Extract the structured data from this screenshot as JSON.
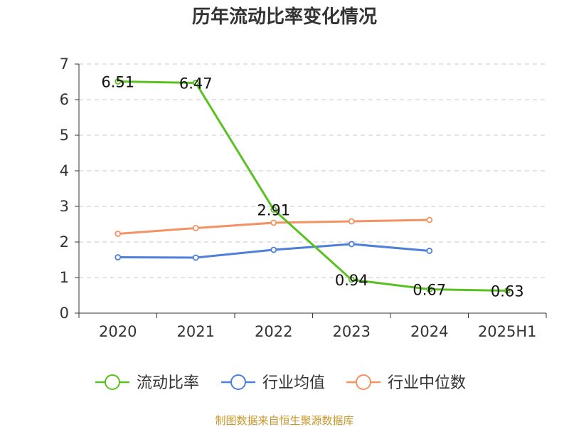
{
  "chart_data": {
    "type": "line",
    "title": "历年流动比率变化情况",
    "categories": [
      "2020",
      "2021",
      "2022",
      "2023",
      "2024",
      "2025H1"
    ],
    "ylim": [
      0,
      7
    ],
    "yticks": [
      "0",
      "1",
      "2",
      "3",
      "4",
      "5",
      "6",
      "7"
    ],
    "grid": true,
    "legend_position": "bottom",
    "series": [
      {
        "name": "流动比率",
        "color": "#5bc122",
        "values": [
          6.51,
          6.47,
          2.91,
          0.94,
          0.67,
          0.63
        ],
        "labels": [
          "6.51",
          "6.47",
          "2.91",
          "0.94",
          "0.67",
          "0.63"
        ]
      },
      {
        "name": "行业均值",
        "color": "#4f7fd8",
        "values": [
          1.57,
          1.56,
          1.78,
          1.94,
          1.75,
          null
        ]
      },
      {
        "name": "行业中位数",
        "color": "#f59264",
        "values": [
          2.23,
          2.39,
          2.54,
          2.58,
          2.62,
          null
        ]
      }
    ],
    "source": "制图数据来自恒生聚源数据库"
  }
}
